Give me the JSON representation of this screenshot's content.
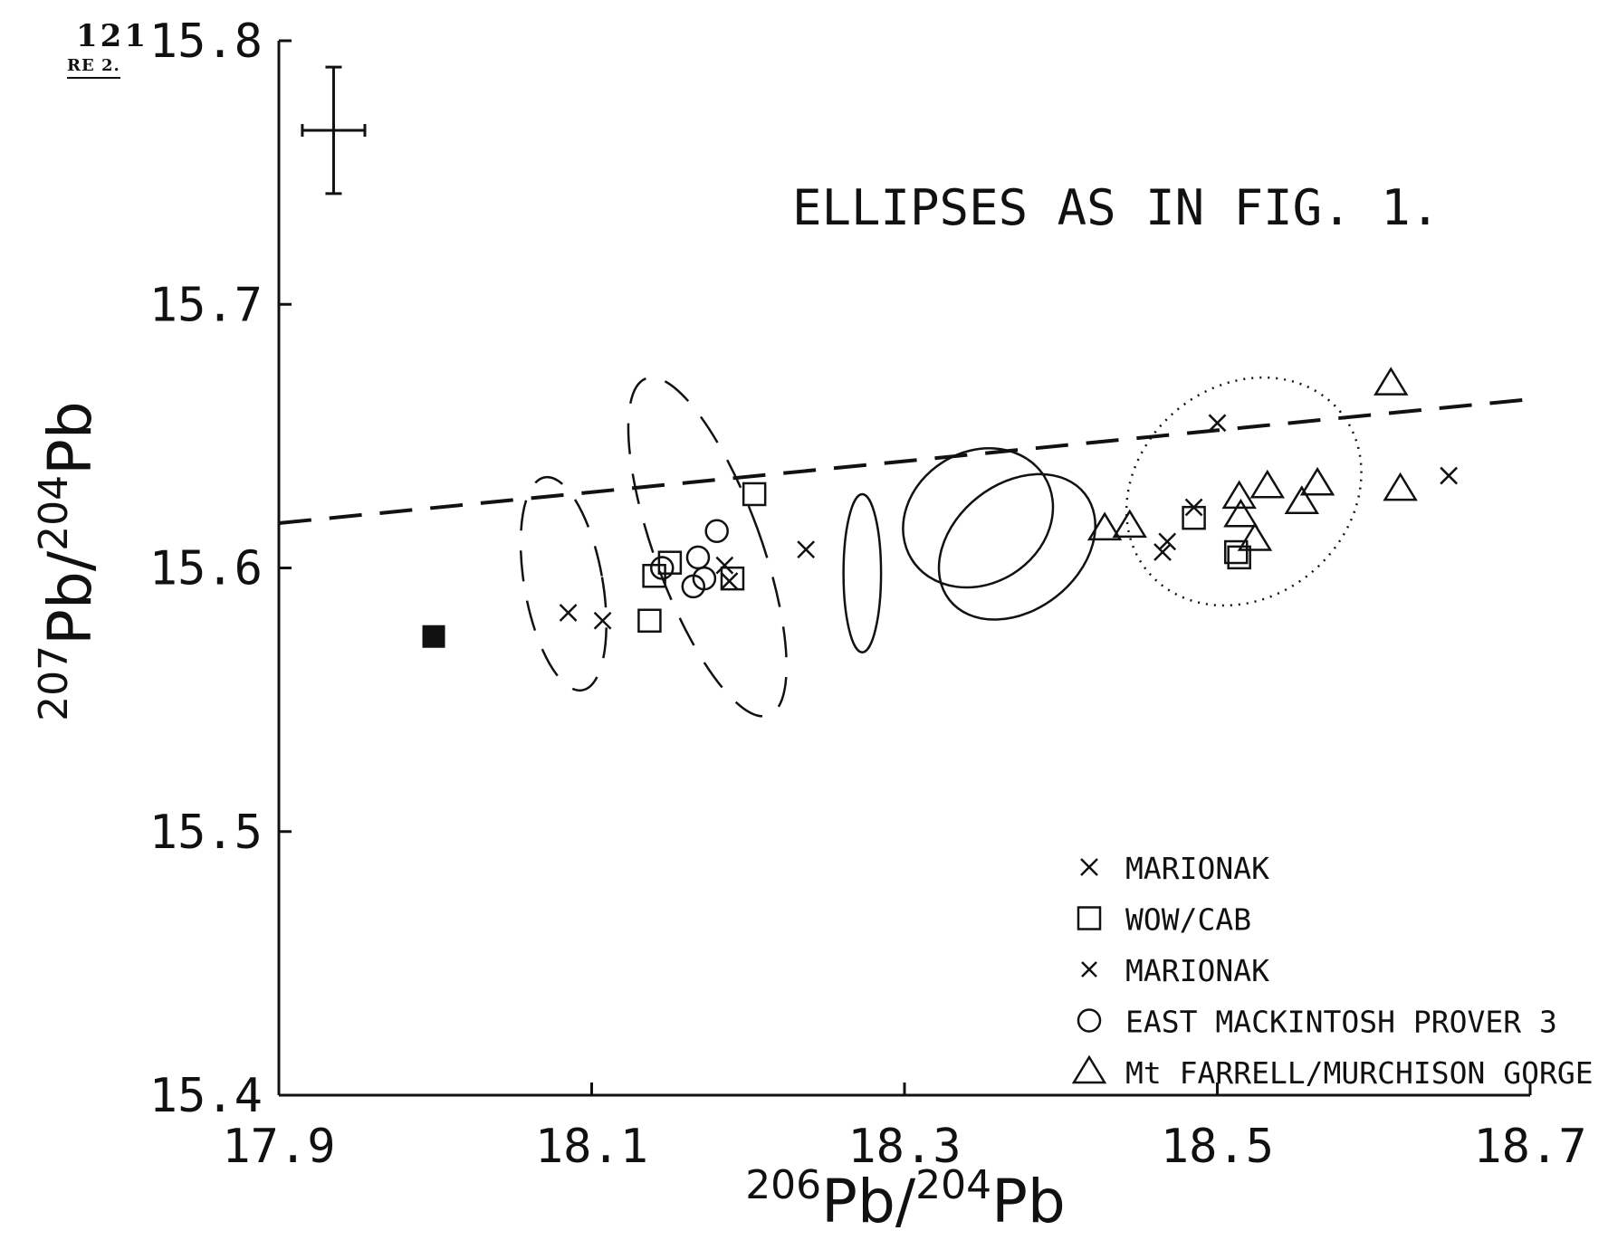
{
  "page_header": {
    "number": "121",
    "figure_label": "RE 2."
  },
  "chart_data": {
    "type": "scatter",
    "title": "",
    "annotation": "ELLIPSES AS IN FIG. 1.",
    "xlabel": {
      "sup1": "206",
      "base1": "Pb",
      "slash": "/",
      "sup2": "204",
      "base2": "Pb"
    },
    "ylabel": {
      "sup1": "207",
      "base1": "Pb",
      "slash": "/",
      "sup2": "204",
      "base2": "Pb"
    },
    "xlim": [
      17.9,
      18.7
    ],
    "ylim": [
      15.4,
      15.8
    ],
    "x_ticks": [
      17.9,
      18.1,
      18.3,
      18.5,
      18.7
    ],
    "x_tick_labels": [
      "17.9",
      "18.1",
      "18.3",
      "18.5",
      "18.7"
    ],
    "y_ticks": [
      15.4,
      15.5,
      15.6,
      15.7,
      15.8
    ],
    "y_tick_labels": [
      "15.4",
      "15.5",
      "15.6",
      "15.7",
      "15.8"
    ],
    "grid": false,
    "legend_position": "bottom-right",
    "error_bar": {
      "x": 17.935,
      "y": 15.766,
      "dx": 0.02,
      "dy": 0.024
    },
    "reference_line": {
      "style": "dashed",
      "x": [
        17.9,
        18.7
      ],
      "y": [
        15.617,
        15.664
      ]
    },
    "ellipses": [
      {
        "cx": 18.082,
        "cy": 15.594,
        "rx": 0.025,
        "ry": 0.041,
        "angle": -10,
        "style": "dashed"
      },
      {
        "cx": 18.174,
        "cy": 15.608,
        "rx": 0.034,
        "ry": 0.068,
        "angle": -20,
        "style": "dashed"
      },
      {
        "cx": 18.273,
        "cy": 15.598,
        "rx": 0.012,
        "ry": 0.03,
        "angle": 0,
        "style": "solid"
      },
      {
        "cx": 18.347,
        "cy": 15.619,
        "rx": 0.05,
        "ry": 0.025,
        "angle": -32,
        "style": "solid"
      },
      {
        "cx": 18.372,
        "cy": 15.608,
        "rx": 0.055,
        "ry": 0.024,
        "angle": -38,
        "style": "solid"
      },
      {
        "cx": 18.517,
        "cy": 15.629,
        "rx": 0.08,
        "ry": 0.04,
        "angle": -40,
        "style": "dotted"
      }
    ],
    "series": [
      {
        "name": "MARIONAK",
        "marker": "x",
        "x": [
          18.085,
          18.107,
          18.185,
          18.188,
          18.237,
          18.465,
          18.468,
          18.485,
          18.5,
          18.648
        ],
        "y": [
          15.583,
          15.58,
          15.601,
          15.595,
          15.607,
          15.606,
          15.61,
          15.623,
          15.655,
          15.635
        ]
      },
      {
        "name": "WOW/CAB",
        "marker": "square",
        "x": [
          18.137,
          18.14,
          18.15,
          18.19,
          18.204,
          18.485,
          18.512,
          18.514
        ],
        "y": [
          15.58,
          15.597,
          15.602,
          15.596,
          15.628,
          15.619,
          15.606,
          15.604
        ]
      },
      {
        "name": "MARIONAK",
        "marker": "x-small",
        "x": [],
        "y": []
      },
      {
        "name": "EAST MACKINTOSH PROVER 3",
        "marker": "circle",
        "x": [
          18.145,
          18.165,
          18.168,
          18.172,
          18.18
        ],
        "y": [
          15.6,
          15.593,
          15.604,
          15.596,
          15.614
        ]
      },
      {
        "name": "Mt FARRELL/MURCHISON GORGE",
        "marker": "triangle",
        "x": [
          18.428,
          18.444,
          18.514,
          18.515,
          18.524,
          18.532,
          18.554,
          18.564,
          18.611,
          18.617
        ],
        "y": [
          15.615,
          15.616,
          15.627,
          15.62,
          15.611,
          15.631,
          15.625,
          15.632,
          15.67,
          15.63
        ]
      }
    ],
    "unlabeled_points": [
      {
        "x": 17.999,
        "y": 15.574,
        "marker": "filled-square"
      }
    ]
  }
}
